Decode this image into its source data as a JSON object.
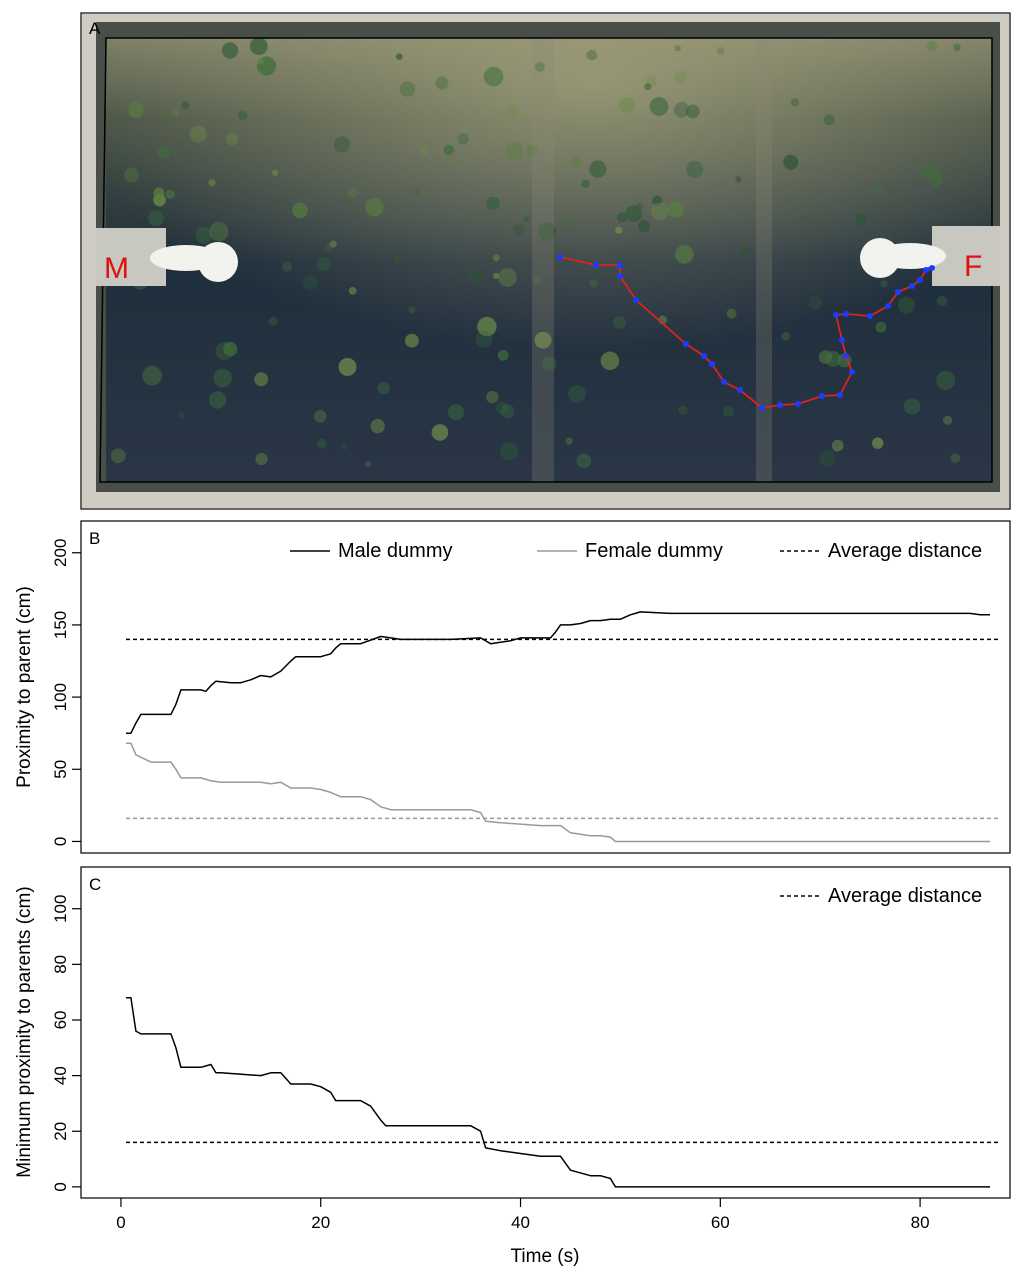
{
  "panel_a": {
    "label": "A",
    "marker_male": "M",
    "marker_female": "F",
    "colors": {
      "water_dark": "#1c2a3a",
      "water_light": "#8a8a6e",
      "path_line": "#dd2222",
      "path_points": "#1a3cff",
      "marker_text": "#dd1111",
      "dummy": "#f2f2ef"
    }
  },
  "chart_data": [
    {
      "type": "line",
      "panel": "B",
      "title": "",
      "xlabel": "",
      "ylabel": "Proximity to parent (cm)",
      "xlim": [
        -4,
        89
      ],
      "ylim": [
        -8,
        222
      ],
      "yticks": [
        0,
        50,
        100,
        150,
        200
      ],
      "grid": false,
      "legend_position": "top",
      "series": [
        {
          "name": "Male dummy",
          "color": "#000000",
          "style": "solid",
          "x": [
            0.5,
            1,
            1.5,
            2,
            5,
            5.5,
            6,
            8,
            8.5,
            9,
            9.5,
            11,
            12,
            13,
            14,
            15,
            16,
            17,
            17.5,
            18,
            19,
            20,
            21,
            21.5,
            22,
            24,
            26,
            27,
            28,
            33,
            36,
            37,
            38,
            39,
            40,
            43,
            43.5,
            44,
            45,
            46,
            47,
            48,
            49,
            50,
            51,
            52,
            55,
            60,
            65,
            70,
            75,
            80,
            85,
            86,
            87
          ],
          "y": [
            75,
            75,
            82,
            88,
            88,
            95,
            105,
            105,
            104,
            108,
            111,
            110,
            110,
            112,
            115,
            114,
            118,
            125,
            128,
            128,
            128,
            128,
            130,
            134,
            137,
            137,
            142,
            141,
            140,
            140,
            141,
            137,
            138,
            139,
            141,
            141,
            145,
            150,
            150,
            151,
            153,
            153,
            154,
            154,
            157,
            159,
            158,
            158,
            158,
            158,
            158,
            158,
            158,
            157,
            157
          ]
        },
        {
          "name": "Female dummy",
          "color": "#999999",
          "style": "solid",
          "x": [
            0.5,
            1,
            1.5,
            3,
            5,
            5.5,
            6,
            8,
            9,
            10,
            14,
            15,
            16,
            17,
            19,
            20,
            21,
            22,
            24,
            25,
            26,
            27,
            30,
            32,
            35,
            36,
            36.5,
            38,
            40,
            42,
            44,
            45,
            47,
            48,
            49,
            49.5,
            55,
            60,
            70,
            80,
            87
          ],
          "y": [
            68,
            68,
            60,
            55,
            55,
            50,
            44,
            44,
            42,
            41,
            41,
            40,
            41,
            37,
            37,
            36,
            34,
            31,
            31,
            29,
            24,
            22,
            22,
            22,
            22,
            20,
            14,
            13,
            12,
            11,
            11,
            6,
            4,
            4,
            3,
            0,
            0,
            0,
            0,
            0,
            0
          ]
        },
        {
          "name": "Average distance",
          "color": "#000000",
          "style": "dashed",
          "x": [
            0.5,
            88
          ],
          "y": [
            140,
            140
          ]
        },
        {
          "name": "",
          "color": "#999999",
          "style": "dashed",
          "x": [
            0.5,
            88
          ],
          "y": [
            16,
            16
          ]
        }
      ]
    },
    {
      "type": "line",
      "panel": "C",
      "title": "",
      "xlabel": "Time (s)",
      "ylabel": "Minimum proximity to parents (cm)",
      "xlim": [
        -4,
        89
      ],
      "ylim": [
        -4,
        115
      ],
      "xticks": [
        0,
        20,
        40,
        60,
        80
      ],
      "yticks": [
        0,
        20,
        40,
        60,
        80,
        100
      ],
      "grid": false,
      "legend_position": "top-right",
      "series": [
        {
          "name": "",
          "color": "#000000",
          "style": "solid",
          "x": [
            0.5,
            1,
            1.5,
            2,
            3,
            5,
            5.5,
            6,
            8,
            9,
            9.5,
            10,
            14,
            15,
            16,
            17,
            19,
            20,
            21,
            21.5,
            22,
            24,
            25,
            26,
            26.5,
            27,
            30,
            32,
            35,
            36,
            36.5,
            38,
            40,
            42,
            44,
            45,
            47,
            48,
            49,
            49.5,
            55,
            60,
            70,
            80,
            87
          ],
          "y": [
            68,
            68,
            56,
            55,
            55,
            55,
            50,
            43,
            43,
            44,
            41,
            41,
            40,
            41,
            41,
            37,
            37,
            36,
            34,
            31,
            31,
            31,
            29,
            24,
            22,
            22,
            22,
            22,
            22,
            20,
            14,
            13,
            12,
            11,
            11,
            6,
            4,
            4,
            3,
            0,
            0,
            0,
            0,
            0,
            0
          ]
        },
        {
          "name": "Average distance",
          "color": "#000000",
          "style": "dashed",
          "x": [
            0.5,
            88
          ],
          "y": [
            16,
            16
          ]
        }
      ]
    }
  ],
  "panel_b_label": "B",
  "panel_c_label": "C"
}
